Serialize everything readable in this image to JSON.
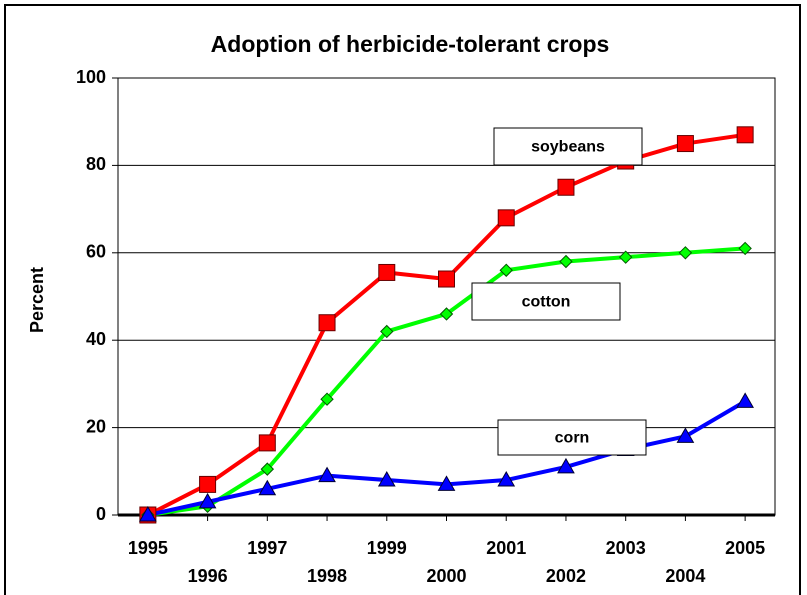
{
  "chart_data": {
    "type": "line",
    "title": "Adoption of herbicide-tolerant crops",
    "y_label": "Percent",
    "x": [
      1995,
      1996,
      1997,
      1998,
      1999,
      2000,
      2001,
      2002,
      2003,
      2004,
      2005
    ],
    "xlim": [
      1994.5,
      2005.5
    ],
    "xticks": [
      1995,
      1996,
      1997,
      1998,
      1999,
      2000,
      2001,
      2002,
      2003,
      2004,
      2005
    ],
    "ylim": [
      0,
      100
    ],
    "yticks": [
      0,
      20,
      40,
      60,
      80,
      100
    ],
    "grid": true,
    "series": [
      {
        "name": "soybeans",
        "color": "#ff0000",
        "marker": "square",
        "values": [
          0,
          7,
          16.5,
          44,
          55.5,
          54,
          68,
          75,
          81,
          85,
          87
        ]
      },
      {
        "name": "cotton",
        "color": "#00ff00",
        "marker": "diamond",
        "values": [
          0,
          2,
          10.5,
          26.5,
          42,
          46,
          56,
          58,
          59,
          60,
          61
        ]
      },
      {
        "name": "corn",
        "color": "#0000ff",
        "marker": "triangle",
        "values": [
          0,
          3,
          6,
          9,
          8,
          7,
          8,
          11,
          15,
          18,
          26
        ]
      }
    ]
  }
}
